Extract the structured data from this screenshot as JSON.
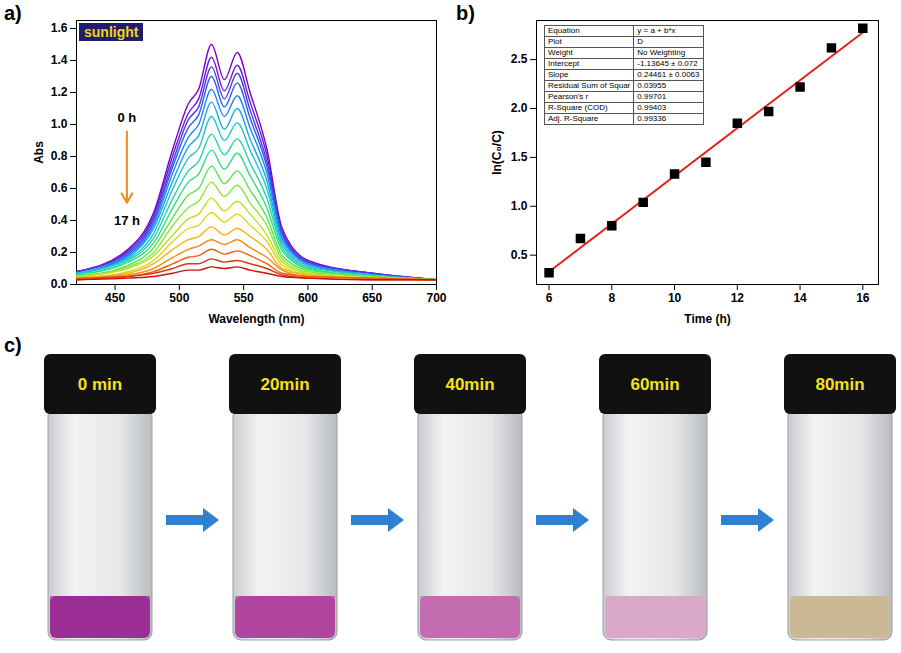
{
  "chart_data": [
    {
      "type": "line",
      "panel_label": "a)",
      "title": "sunlight",
      "xlabel": "Wavelength (nm)",
      "ylabel": "Abs",
      "annotations": [
        "0 h",
        "17 h"
      ],
      "x": [
        420,
        460,
        480,
        495,
        507,
        515,
        525,
        535,
        545,
        555,
        568,
        580,
        600,
        650,
        700
      ],
      "series": [
        {
          "color": "#7b00c8",
          "values": [
            0.08,
            0.22,
            0.45,
            0.85,
            1.13,
            1.22,
            1.5,
            1.28,
            1.45,
            1.2,
            0.85,
            0.35,
            0.15,
            0.07,
            0.03
          ]
        },
        {
          "color": "#6a1bd6",
          "values": [
            0.08,
            0.21,
            0.43,
            0.81,
            1.07,
            1.16,
            1.42,
            1.21,
            1.37,
            1.14,
            0.81,
            0.33,
            0.14,
            0.07,
            0.03
          ]
        },
        {
          "color": "#4b3be6",
          "values": [
            0.08,
            0.2,
            0.41,
            0.77,
            1.03,
            1.11,
            1.36,
            1.16,
            1.32,
            1.09,
            0.77,
            0.32,
            0.14,
            0.07,
            0.03
          ]
        },
        {
          "color": "#2d5cf0",
          "values": [
            0.07,
            0.19,
            0.39,
            0.74,
            0.98,
            1.06,
            1.3,
            1.11,
            1.26,
            1.04,
            0.74,
            0.31,
            0.13,
            0.06,
            0.03
          ]
        },
        {
          "color": "#1f85f0",
          "values": [
            0.07,
            0.18,
            0.37,
            0.7,
            0.92,
            1.0,
            1.22,
            1.05,
            1.18,
            0.98,
            0.7,
            0.29,
            0.13,
            0.06,
            0.03
          ]
        },
        {
          "color": "#19a8e8",
          "values": [
            0.07,
            0.17,
            0.35,
            0.65,
            0.86,
            0.93,
            1.14,
            0.97,
            1.1,
            0.91,
            0.65,
            0.27,
            0.12,
            0.06,
            0.03
          ]
        },
        {
          "color": "#1ec4d0",
          "values": [
            0.07,
            0.16,
            0.32,
            0.6,
            0.79,
            0.85,
            1.05,
            0.9,
            1.01,
            0.84,
            0.6,
            0.25,
            0.11,
            0.06,
            0.03
          ]
        },
        {
          "color": "#22d6ac",
          "values": [
            0.06,
            0.15,
            0.29,
            0.54,
            0.71,
            0.77,
            0.94,
            0.81,
            0.91,
            0.76,
            0.54,
            0.23,
            0.1,
            0.05,
            0.03
          ]
        },
        {
          "color": "#2edf80",
          "values": [
            0.06,
            0.14,
            0.26,
            0.48,
            0.64,
            0.69,
            0.84,
            0.72,
            0.82,
            0.68,
            0.48,
            0.21,
            0.1,
            0.05,
            0.03
          ]
        },
        {
          "color": "#55e64f",
          "values": [
            0.05,
            0.12,
            0.23,
            0.42,
            0.56,
            0.6,
            0.74,
            0.63,
            0.71,
            0.59,
            0.42,
            0.18,
            0.09,
            0.05,
            0.03
          ]
        },
        {
          "color": "#8ae733",
          "values": [
            0.05,
            0.11,
            0.2,
            0.37,
            0.48,
            0.52,
            0.64,
            0.55,
            0.62,
            0.51,
            0.37,
            0.16,
            0.08,
            0.05,
            0.03
          ]
        },
        {
          "color": "#b8e21f",
          "values": [
            0.05,
            0.1,
            0.18,
            0.31,
            0.41,
            0.44,
            0.54,
            0.46,
            0.52,
            0.44,
            0.31,
            0.14,
            0.07,
            0.04,
            0.03
          ]
        },
        {
          "color": "#dfd418",
          "values": [
            0.04,
            0.08,
            0.15,
            0.27,
            0.35,
            0.37,
            0.45,
            0.39,
            0.44,
            0.37,
            0.27,
            0.12,
            0.06,
            0.04,
            0.03
          ]
        },
        {
          "color": "#f5b414",
          "values": [
            0.04,
            0.07,
            0.13,
            0.22,
            0.28,
            0.3,
            0.36,
            0.31,
            0.35,
            0.3,
            0.22,
            0.1,
            0.06,
            0.04,
            0.03
          ]
        },
        {
          "color": "#f78a12",
          "values": [
            0.04,
            0.06,
            0.1,
            0.17,
            0.22,
            0.24,
            0.28,
            0.25,
            0.28,
            0.23,
            0.17,
            0.09,
            0.05,
            0.04,
            0.03
          ]
        },
        {
          "color": "#f05c10",
          "values": [
            0.04,
            0.05,
            0.08,
            0.13,
            0.17,
            0.18,
            0.22,
            0.19,
            0.21,
            0.18,
            0.13,
            0.07,
            0.05,
            0.04,
            0.03
          ]
        },
        {
          "color": "#e0330e",
          "values": [
            0.03,
            0.05,
            0.07,
            0.1,
            0.13,
            0.13,
            0.16,
            0.14,
            0.15,
            0.13,
            0.1,
            0.06,
            0.04,
            0.03,
            0.03
          ]
        },
        {
          "color": "#c8100c",
          "values": [
            0.03,
            0.04,
            0.05,
            0.07,
            0.09,
            0.09,
            0.11,
            0.1,
            0.11,
            0.09,
            0.07,
            0.05,
            0.04,
            0.03,
            0.03
          ]
        }
      ],
      "xlim": [
        420,
        700
      ],
      "xticks": [
        450,
        500,
        550,
        600,
        650,
        700
      ],
      "ylim": [
        0,
        1.65
      ],
      "yticks": [
        {
          "value": 0,
          "label": "0.0"
        },
        0.2,
        0.4,
        0.6,
        0.8,
        {
          "value": 1,
          "label": "1.0"
        },
        1.2,
        1.4,
        1.6
      ]
    },
    {
      "type": "scatter",
      "panel_label": "b)",
      "xlabel": "Time (h)",
      "ylabel": "ln(C₀/C)",
      "x": [
        6,
        7,
        8,
        9,
        10,
        11,
        12,
        13,
        14,
        15,
        16
      ],
      "values": [
        0.32,
        0.67,
        0.8,
        1.04,
        1.33,
        1.45,
        1.85,
        1.97,
        2.22,
        2.62,
        2.82
      ],
      "color": "#000000",
      "marker": "square",
      "fit": {
        "intercept": -1.13645,
        "slope": 0.24461,
        "color": "#e3241b"
      },
      "table": [
        [
          "Equation",
          "y = a + b*x"
        ],
        [
          "Plot",
          "D"
        ],
        [
          "Weight",
          "No Weighting"
        ],
        [
          "Intercept",
          "-1.13645 ± 0.072"
        ],
        [
          "Slope",
          "0.24461 ± 0.0063"
        ],
        [
          "Residual Sum of Squar",
          "0.03955"
        ],
        [
          "Pearson's r",
          "0.99701"
        ],
        [
          "R-Square (COD)",
          "0.99403"
        ],
        [
          "Adj. R-Square",
          "0.99336"
        ]
      ],
      "xlim": [
        5.6,
        16.5
      ],
      "xticks": [
        6,
        8,
        10,
        12,
        14,
        16
      ],
      "ylim": [
        0.2,
        2.9
      ],
      "yticks": [
        0.5,
        {
          "value": 1,
          "label": "1.0"
        },
        1.5,
        {
          "value": 2,
          "label": "2.0"
        },
        2.5
      ]
    }
  ],
  "photos": {
    "panel_label": "c)",
    "vials": [
      {
        "label": "0 min",
        "color": "#9b2f95"
      },
      {
        "label": "20min",
        "color": "#b1449f"
      },
      {
        "label": "40min",
        "color": "#c46cb0"
      },
      {
        "label": "60min",
        "color": "#d9a9c7"
      },
      {
        "label": "80min",
        "color": "#cbb996"
      }
    ]
  }
}
